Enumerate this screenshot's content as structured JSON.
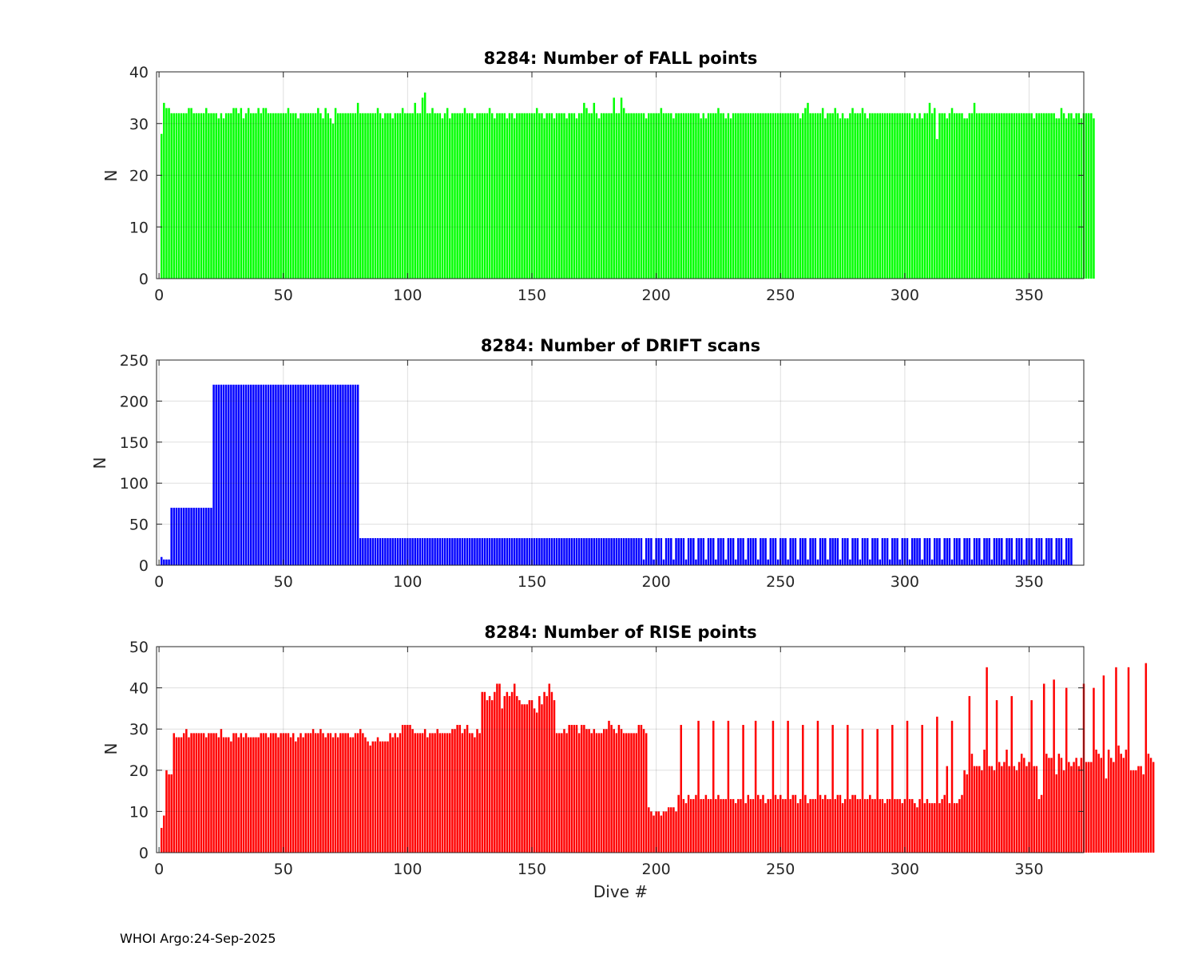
{
  "footer": "WHOI Argo:24-Sep-2025",
  "chart_data": [
    {
      "type": "bar",
      "title": "8284: Number of FALL points",
      "xlabel": "",
      "ylabel": "N",
      "xlim": [
        -1,
        372
      ],
      "ylim": [
        0,
        40
      ],
      "xticks": [
        0,
        50,
        100,
        150,
        200,
        250,
        300,
        350
      ],
      "yticks": [
        0,
        10,
        20,
        30,
        40
      ],
      "grid": true,
      "color": "#00ff00",
      "x_start": 1,
      "values": [
        28,
        34,
        33,
        33,
        32,
        32,
        32,
        32,
        32,
        32,
        32,
        33,
        33,
        32,
        32,
        32,
        32,
        32,
        33,
        32,
        32,
        32,
        32,
        31,
        32,
        31,
        32,
        32,
        32,
        33,
        33,
        32,
        33,
        31,
        32,
        33,
        32,
        32,
        32,
        33,
        32,
        33,
        33,
        32,
        32,
        32,
        32,
        32,
        32,
        32,
        32,
        33,
        32,
        32,
        32,
        31,
        32,
        32,
        32,
        32,
        32,
        32,
        32,
        33,
        32,
        31,
        33,
        32,
        31,
        30,
        33,
        32,
        32,
        32,
        32,
        32,
        32,
        32,
        32,
        34,
        32,
        32,
        32,
        32,
        32,
        32,
        32,
        33,
        32,
        31,
        32,
        32,
        32,
        31,
        32,
        32,
        32,
        33,
        32,
        32,
        32,
        32,
        34,
        32,
        32,
        35,
        36,
        32,
        32,
        33,
        32,
        32,
        32,
        31,
        32,
        33,
        31,
        32,
        32,
        32,
        32,
        32,
        33,
        32,
        32,
        32,
        31,
        32,
        32,
        32,
        32,
        32,
        33,
        32,
        31,
        32,
        32,
        32,
        32,
        31,
        32,
        32,
        31,
        32,
        32,
        32,
        32,
        32,
        32,
        32,
        32,
        33,
        32,
        32,
        31,
        32,
        32,
        32,
        31,
        32,
        32,
        32,
        32,
        31,
        32,
        32,
        32,
        31,
        32,
        32,
        34,
        33,
        32,
        32,
        34,
        32,
        31,
        32,
        32,
        32,
        32,
        32,
        35,
        32,
        32,
        35,
        33,
        32,
        32,
        32,
        32,
        32,
        32,
        32,
        32,
        31,
        32,
        32,
        32,
        32,
        32,
        33,
        32,
        32,
        32,
        32,
        31,
        32,
        32,
        32,
        32,
        32,
        32,
        32,
        32,
        32,
        32,
        31,
        32,
        31,
        32,
        32,
        32,
        32,
        33,
        32,
        32,
        31,
        32,
        31,
        32,
        32,
        32,
        32,
        32,
        32,
        32,
        32,
        32,
        32,
        32,
        32,
        32,
        32,
        32,
        32,
        32,
        32,
        32,
        32,
        32,
        32,
        32,
        32,
        32,
        32,
        32,
        31,
        32,
        33,
        34,
        32,
        32,
        32,
        32,
        32,
        33,
        31,
        32,
        32,
        32,
        33,
        32,
        31,
        32,
        31,
        31,
        32,
        33,
        32,
        32,
        32,
        33,
        32,
        31,
        32,
        32,
        32,
        32,
        32,
        32,
        32,
        32,
        32,
        32,
        32,
        32,
        32,
        32,
        32,
        32,
        32,
        31,
        32,
        31,
        32,
        31,
        32,
        32,
        34,
        32,
        33,
        27,
        32,
        32,
        32,
        31,
        32,
        33,
        32,
        32,
        32,
        32,
        31,
        31,
        32,
        32,
        34,
        32,
        32,
        32,
        32,
        32,
        32,
        32,
        32,
        32,
        32,
        32,
        32,
        32,
        32,
        32,
        32,
        32,
        32,
        32,
        32,
        32,
        32,
        32,
        31,
        32,
        32,
        32,
        32,
        32,
        32,
        32,
        32,
        31,
        31,
        33,
        32,
        31,
        32,
        32,
        31,
        32,
        32,
        31,
        32,
        32,
        32,
        32,
        31
      ]
    },
    {
      "type": "bar",
      "title": "8284: Number of DRIFT scans",
      "xlabel": "",
      "ylabel": "N",
      "xlim": [
        -1,
        372
      ],
      "ylim": [
        0,
        250
      ],
      "xticks": [
        0,
        50,
        100,
        150,
        200,
        250,
        300,
        350
      ],
      "yticks": [
        0,
        50,
        100,
        150,
        200,
        250
      ],
      "grid": true,
      "color": "#0000ff",
      "x_start": 1,
      "values": [
        10,
        7,
        7,
        7,
        70,
        70,
        70,
        70,
        70,
        70,
        70,
        70,
        70,
        70,
        70,
        70,
        70,
        70,
        70,
        70,
        70,
        220,
        220,
        220,
        220,
        220,
        220,
        220,
        220,
        220,
        220,
        220,
        220,
        220,
        220,
        220,
        220,
        220,
        220,
        220,
        220,
        220,
        220,
        220,
        220,
        220,
        220,
        220,
        220,
        220,
        220,
        220,
        220,
        220,
        220,
        220,
        220,
        220,
        220,
        220,
        220,
        220,
        220,
        220,
        220,
        220,
        220,
        220,
        220,
        220,
        220,
        220,
        220,
        220,
        220,
        220,
        220,
        220,
        220,
        220,
        33,
        33,
        33,
        33,
        33,
        33,
        33,
        33,
        33,
        33,
        33,
        33,
        33,
        33,
        33,
        33,
        33,
        33,
        33,
        33,
        33,
        33,
        33,
        33,
        33,
        33,
        33,
        33,
        33,
        33,
        33,
        33,
        33,
        33,
        33,
        33,
        33,
        33,
        33,
        33,
        33,
        33,
        33,
        33,
        33,
        33,
        33,
        33,
        33,
        33,
        33,
        33,
        33,
        33,
        33,
        33,
        33,
        33,
        33,
        33,
        33,
        33,
        33,
        33,
        33,
        33,
        33,
        33,
        33,
        33,
        33,
        33,
        33,
        33,
        33,
        33,
        33,
        33,
        33,
        33,
        33,
        33,
        33,
        33,
        33,
        33,
        33,
        33,
        33,
        33,
        33,
        33,
        33,
        33,
        33,
        33,
        33,
        33,
        33,
        33,
        33,
        33,
        33,
        33,
        33,
        33,
        33,
        33,
        33,
        33,
        33,
        33,
        33,
        33,
        7,
        33,
        33,
        33,
        7,
        33,
        33,
        33,
        7,
        33,
        33,
        33,
        7,
        33,
        33,
        33,
        33,
        7,
        33,
        33,
        33,
        7,
        33,
        33,
        33,
        7,
        33,
        33,
        33,
        7,
        33,
        33,
        33,
        7,
        33,
        33,
        33,
        7,
        33,
        33,
        33,
        7,
        33,
        33,
        33,
        33,
        7,
        33,
        33,
        33,
        7,
        33,
        33,
        33,
        7,
        33,
        33,
        33,
        7,
        33,
        33,
        33,
        7,
        33,
        33,
        33,
        7,
        33,
        33,
        33,
        7,
        33,
        33,
        33,
        7,
        33,
        33,
        33,
        33,
        7,
        33,
        33,
        33,
        7,
        33,
        33,
        33,
        7,
        33,
        33,
        33,
        7,
        33,
        33,
        33,
        7,
        33,
        33,
        33,
        7,
        33,
        33,
        33,
        7,
        33,
        33,
        33,
        7,
        33,
        33,
        33,
        33,
        7,
        33,
        33,
        33,
        7,
        33,
        33,
        33,
        7,
        33,
        33,
        33,
        7,
        33,
        33,
        33,
        7,
        33,
        33,
        33,
        7,
        33,
        33,
        33,
        7,
        33,
        33,
        33,
        7,
        33,
        33,
        33,
        33,
        7,
        33,
        33,
        33,
        7,
        33,
        33,
        33,
        7,
        33,
        33,
        33,
        7,
        33,
        33,
        33,
        7,
        33,
        33,
        33,
        7,
        33,
        33,
        33,
        7,
        33,
        33,
        33
      ]
    },
    {
      "type": "bar",
      "title": "8284: Number of RISE points",
      "xlabel": "Dive #",
      "ylabel": "N",
      "xlim": [
        -1,
        372
      ],
      "ylim": [
        0,
        50
      ],
      "xticks": [
        0,
        50,
        100,
        150,
        200,
        250,
        300,
        350
      ],
      "yticks": [
        0,
        10,
        20,
        30,
        40,
        50
      ],
      "grid": true,
      "color": "#ff0000",
      "x_start": 1,
      "values": [
        6,
        9,
        20,
        19,
        19,
        29,
        28,
        28,
        28,
        29,
        30,
        28,
        29,
        29,
        29,
        29,
        29,
        29,
        28,
        29,
        29,
        29,
        29,
        28,
        30,
        28,
        28,
        28,
        27,
        29,
        29,
        28,
        29,
        28,
        29,
        28,
        28,
        28,
        28,
        28,
        29,
        29,
        29,
        28,
        29,
        29,
        29,
        28,
        29,
        29,
        29,
        29,
        28,
        29,
        27,
        28,
        29,
        28,
        29,
        29,
        29,
        30,
        29,
        29,
        30,
        29,
        28,
        29,
        29,
        28,
        29,
        28,
        29,
        29,
        29,
        29,
        28,
        28,
        29,
        29,
        30,
        29,
        28,
        27,
        26,
        27,
        27,
        28,
        27,
        27,
        27,
        27,
        29,
        28,
        29,
        28,
        29,
        31,
        31,
        31,
        31,
        30,
        29,
        29,
        29,
        29,
        30,
        28,
        29,
        29,
        29,
        30,
        29,
        29,
        29,
        29,
        29,
        30,
        30,
        31,
        31,
        29,
        30,
        31,
        29,
        29,
        28,
        30,
        29,
        39,
        39,
        37,
        38,
        37,
        39,
        41,
        41,
        35,
        38,
        39,
        38,
        39,
        41,
        38,
        37,
        36,
        36,
        36,
        37,
        37,
        35,
        34,
        38,
        36,
        39,
        38,
        41,
        39,
        37,
        29,
        29,
        29,
        30,
        29,
        31,
        31,
        31,
        31,
        29,
        31,
        31,
        30,
        30,
        29,
        30,
        29,
        29,
        29,
        30,
        30,
        32,
        31,
        30,
        29,
        31,
        30,
        29,
        29,
        29,
        29,
        29,
        29,
        31,
        31,
        30,
        29,
        11,
        10,
        9,
        10,
        10,
        9,
        10,
        10,
        11,
        11,
        11,
        10,
        14,
        31,
        13,
        12,
        14,
        13,
        13,
        14,
        32,
        13,
        13,
        14,
        13,
        13,
        32,
        13,
        14,
        13,
        13,
        13,
        32,
        13,
        13,
        12,
        13,
        13,
        31,
        12,
        14,
        13,
        13,
        32,
        14,
        13,
        14,
        12,
        13,
        13,
        32,
        14,
        13,
        14,
        13,
        13,
        32,
        13,
        14,
        14,
        12,
        13,
        31,
        14,
        12,
        13,
        13,
        13,
        32,
        14,
        13,
        14,
        13,
        13,
        31,
        13,
        14,
        14,
        12,
        13,
        31,
        13,
        14,
        14,
        13,
        13,
        30,
        13,
        13,
        14,
        13,
        13,
        30,
        13,
        13,
        12,
        13,
        13,
        31,
        13,
        13,
        13,
        12,
        13,
        32,
        13,
        13,
        12,
        11,
        13,
        31,
        12,
        13,
        12,
        12,
        12,
        33,
        12,
        13,
        14,
        21,
        12,
        32,
        12,
        12,
        13,
        14,
        20,
        19,
        38,
        24,
        21,
        21,
        21,
        20,
        25,
        45,
        21,
        21,
        20,
        37,
        22,
        21,
        22,
        25,
        21,
        38,
        21,
        20,
        22,
        24,
        23,
        21,
        22,
        37,
        21,
        21,
        13,
        14,
        41,
        24,
        23,
        23,
        42,
        19,
        24,
        23,
        20,
        40,
        22,
        21,
        22,
        23,
        21,
        23,
        41,
        22,
        22,
        22,
        40,
        25,
        24,
        23,
        43,
        18,
        25,
        23,
        22,
        45,
        26,
        24,
        23,
        25,
        45,
        20,
        20,
        20,
        21,
        21,
        19,
        46,
        24,
        23,
        22
      ]
    }
  ]
}
